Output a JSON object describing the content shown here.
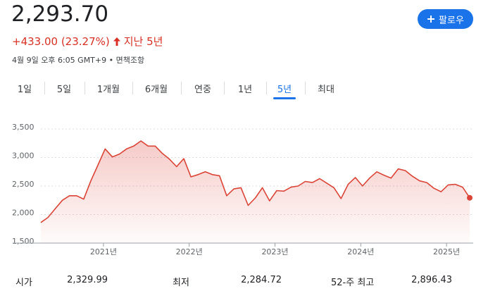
{
  "header": {
    "price": "2,293.70",
    "change": "+433.00 (23.27%)",
    "period": "지난 5년",
    "timestamp": "4월 9일 오후 6:05 GMT+9",
    "separator": "•",
    "disclaimer": "면책조항",
    "follow": "팔로우"
  },
  "tabs": {
    "items": [
      "1일",
      "5일",
      "1개월",
      "6개월",
      "연중",
      "1년",
      "5년",
      "최대"
    ],
    "selected": 6
  },
  "chart_data": {
    "type": "line",
    "color": "#db4437",
    "x": [
      2020.27,
      2020.353,
      2020.437,
      2020.52,
      2020.603,
      2020.687,
      2020.77,
      2020.853,
      2020.937,
      2021.02,
      2021.103,
      2021.187,
      2021.27,
      2021.353,
      2021.437,
      2021.52,
      2021.603,
      2021.687,
      2021.77,
      2021.853,
      2021.937,
      2022.02,
      2022.103,
      2022.187,
      2022.27,
      2022.353,
      2022.437,
      2022.52,
      2022.603,
      2022.687,
      2022.77,
      2022.853,
      2022.937,
      2023.02,
      2023.103,
      2023.187,
      2023.27,
      2023.353,
      2023.437,
      2023.52,
      2023.603,
      2023.687,
      2023.77,
      2023.853,
      2023.937,
      2024.02,
      2024.103,
      2024.187,
      2024.27,
      2024.353,
      2024.437,
      2024.52,
      2024.603,
      2024.687,
      2024.77,
      2024.853,
      2024.937,
      2025.02,
      2025.103,
      2025.187,
      2025.27
    ],
    "values": [
      1860,
      1950,
      2100,
      2250,
      2330,
      2330,
      2270,
      2590,
      2870,
      3150,
      3010,
      3060,
      3150,
      3200,
      3290,
      3200,
      3200,
      3070,
      2970,
      2840,
      2980,
      2660,
      2700,
      2750,
      2700,
      2680,
      2330,
      2450,
      2470,
      2160,
      2290,
      2470,
      2240,
      2420,
      2410,
      2480,
      2500,
      2580,
      2560,
      2630,
      2550,
      2470,
      2280,
      2530,
      2650,
      2500,
      2640,
      2750,
      2690,
      2640,
      2800,
      2770,
      2670,
      2590,
      2560,
      2460,
      2400,
      2520,
      2530,
      2480,
      2293.7
    ],
    "xlim": [
      2020.27,
      2025.27
    ],
    "xticks": [
      {
        "value": 2021,
        "label": "2021년"
      },
      {
        "value": 2022,
        "label": "2022년"
      },
      {
        "value": 2023,
        "label": "2023년"
      },
      {
        "value": 2024,
        "label": "2024년"
      },
      {
        "value": 2025,
        "label": "2025년"
      }
    ],
    "ylim": [
      1500,
      3500
    ],
    "yticks": [
      {
        "value": 1500,
        "label": "1,500"
      },
      {
        "value": 2000,
        "label": "2,000"
      },
      {
        "value": 2500,
        "label": "2,500"
      },
      {
        "value": 3000,
        "label": "3,000"
      },
      {
        "value": 3500,
        "label": "3,500"
      }
    ],
    "grid": true
  },
  "stats": [
    {
      "label": "시가",
      "value": "2,329.99"
    },
    {
      "label": "최저",
      "value": "2,284.72"
    },
    {
      "label": "52-주 최고",
      "value": "2,896.43"
    }
  ]
}
